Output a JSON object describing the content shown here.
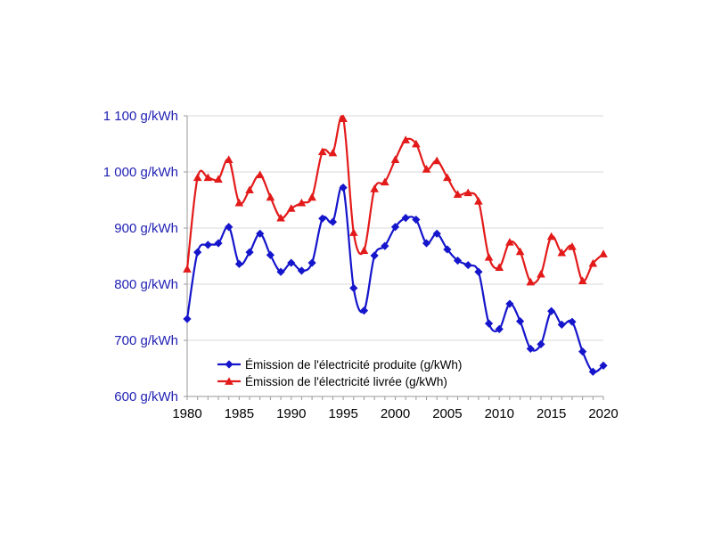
{
  "chart_data": {
    "type": "line",
    "title": "",
    "xlabel": "",
    "ylabel": "",
    "xlim": [
      1980,
      2020
    ],
    "ylim": [
      600,
      1100
    ],
    "grid": "horizontal",
    "legend_position": "bottom-center",
    "x_ticks": [
      "1980",
      "1985",
      "1990",
      "1995",
      "2000",
      "2005",
      "2010",
      "2015",
      "2020"
    ],
    "y_ticks": [
      {
        "value": 600,
        "label": "600 g/kWh"
      },
      {
        "value": 700,
        "label": "700 g/kWh"
      },
      {
        "value": 800,
        "label": "800 g/kWh"
      },
      {
        "value": 900,
        "label": "900 g/kWh"
      },
      {
        "value": 1000,
        "label": "1 000 g/kWh"
      },
      {
        "value": 1100,
        "label": "1 100 g/kWh"
      }
    ],
    "axis_label_color": "#1f1fb4",
    "x": [
      1980,
      1981,
      1982,
      1983,
      1984,
      1985,
      1986,
      1987,
      1988,
      1989,
      1990,
      1991,
      1992,
      1993,
      1994,
      1995,
      1996,
      1997,
      1998,
      1999,
      2000,
      2001,
      2002,
      2003,
      2004,
      2005,
      2006,
      2007,
      2008,
      2009,
      2010,
      2011,
      2012,
      2013,
      2014,
      2015,
      2016,
      2017,
      2018,
      2019,
      2020
    ],
    "series": [
      {
        "name": "Émission de l'électricité produite (g/kWh)",
        "color": "#1515cc",
        "marker": "diamond",
        "values": [
          738,
          857,
          870,
          873,
          902,
          836,
          857,
          890,
          852,
          822,
          838,
          824,
          838,
          917,
          911,
          972,
          793,
          753,
          851,
          868,
          902,
          918,
          915,
          873,
          890,
          862,
          842,
          834,
          822,
          730,
          720,
          765,
          734,
          685,
          693,
          752,
          728,
          733,
          680,
          644,
          655
        ]
      },
      {
        "name": "Émission de l'électricité livrée (g/kWh)",
        "color": "#e31a1a",
        "marker": "triangle",
        "values": [
          827,
          990,
          990,
          987,
          1022,
          945,
          968,
          995,
          955,
          918,
          935,
          945,
          955,
          1036,
          1034,
          1095,
          892,
          860,
          970,
          982,
          1022,
          1057,
          1050,
          1005,
          1020,
          990,
          960,
          963,
          948,
          848,
          830,
          875,
          858,
          804,
          818,
          885,
          856,
          867,
          806,
          837,
          854
        ]
      }
    ]
  }
}
